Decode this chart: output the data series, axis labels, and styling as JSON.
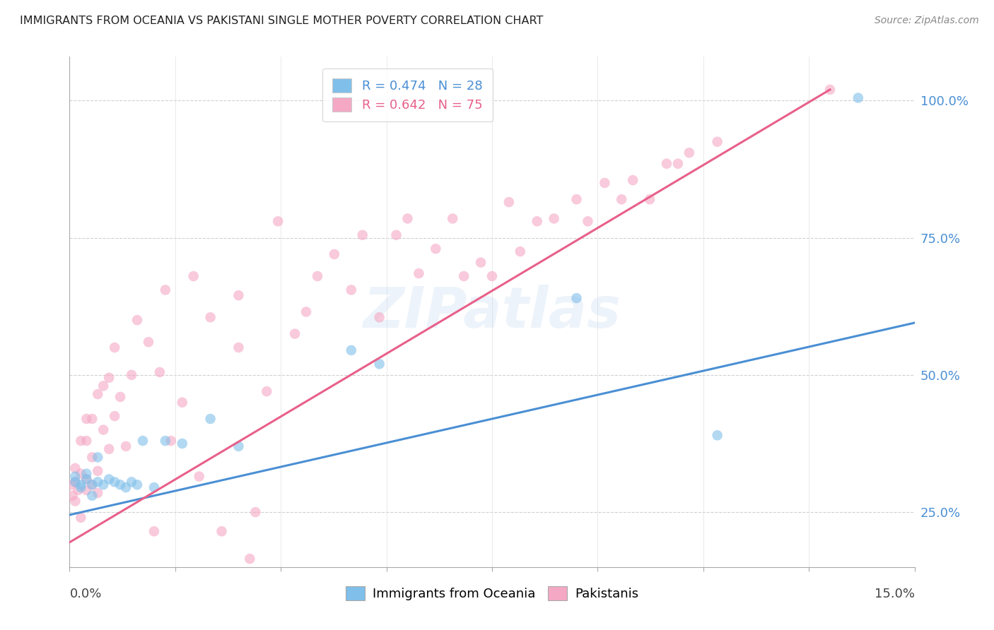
{
  "title": "IMMIGRANTS FROM OCEANIA VS PAKISTANI SINGLE MOTHER POVERTY CORRELATION CHART",
  "source": "Source: ZipAtlas.com",
  "ylabel": "Single Mother Poverty",
  "y_ticks": [
    0.25,
    0.5,
    0.75,
    1.0
  ],
  "y_tick_labels": [
    "25.0%",
    "50.0%",
    "75.0%",
    "100.0%"
  ],
  "x_min": 0.0,
  "x_max": 0.15,
  "y_min": 0.15,
  "y_max": 1.08,
  "watermark": "ZIPatlas",
  "legend_labels": [
    "R = 0.474   N = 28",
    "R = 0.642   N = 75"
  ],
  "blue_color": "#7fbfea",
  "pink_color": "#f4a8c4",
  "blue_line_color": "#4a8fd4",
  "pink_line_color": "#e8608a",
  "blue_line_x": [
    0.0,
    0.15
  ],
  "blue_line_y": [
    0.245,
    0.595
  ],
  "pink_line_x": [
    0.0,
    0.135
  ],
  "pink_line_y": [
    0.195,
    1.02
  ],
  "oceania_x": [
    0.001,
    0.001,
    0.002,
    0.002,
    0.003,
    0.003,
    0.004,
    0.004,
    0.005,
    0.005,
    0.006,
    0.007,
    0.008,
    0.009,
    0.01,
    0.011,
    0.012,
    0.013,
    0.015,
    0.017,
    0.02,
    0.025,
    0.03,
    0.05,
    0.055,
    0.09,
    0.115,
    0.14
  ],
  "oceania_y": [
    0.315,
    0.305,
    0.3,
    0.295,
    0.31,
    0.32,
    0.3,
    0.28,
    0.305,
    0.35,
    0.3,
    0.31,
    0.305,
    0.3,
    0.295,
    0.305,
    0.3,
    0.38,
    0.295,
    0.38,
    0.375,
    0.42,
    0.37,
    0.545,
    0.52,
    0.64,
    0.39,
    1.005
  ],
  "pakistan_x": [
    0.0003,
    0.0005,
    0.001,
    0.001,
    0.001,
    0.0015,
    0.002,
    0.002,
    0.002,
    0.003,
    0.003,
    0.003,
    0.003,
    0.004,
    0.004,
    0.004,
    0.005,
    0.005,
    0.005,
    0.006,
    0.006,
    0.007,
    0.007,
    0.008,
    0.008,
    0.009,
    0.01,
    0.011,
    0.012,
    0.014,
    0.015,
    0.016,
    0.017,
    0.018,
    0.02,
    0.022,
    0.023,
    0.025,
    0.027,
    0.03,
    0.03,
    0.032,
    0.033,
    0.035,
    0.037,
    0.04,
    0.042,
    0.044,
    0.047,
    0.05,
    0.052,
    0.055,
    0.058,
    0.06,
    0.062,
    0.065,
    0.068,
    0.07,
    0.073,
    0.075,
    0.078,
    0.08,
    0.083,
    0.086,
    0.09,
    0.092,
    0.095,
    0.098,
    0.1,
    0.103,
    0.106,
    0.108,
    0.11,
    0.115,
    0.135
  ],
  "pakistan_y": [
    0.3,
    0.28,
    0.33,
    0.27,
    0.305,
    0.29,
    0.38,
    0.32,
    0.24,
    0.31,
    0.29,
    0.38,
    0.42,
    0.3,
    0.35,
    0.42,
    0.325,
    0.285,
    0.465,
    0.4,
    0.48,
    0.365,
    0.495,
    0.425,
    0.55,
    0.46,
    0.37,
    0.5,
    0.6,
    0.56,
    0.215,
    0.505,
    0.655,
    0.38,
    0.45,
    0.68,
    0.315,
    0.605,
    0.215,
    0.645,
    0.55,
    0.165,
    0.25,
    0.47,
    0.78,
    0.575,
    0.615,
    0.68,
    0.72,
    0.655,
    0.755,
    0.605,
    0.755,
    0.785,
    0.685,
    0.73,
    0.785,
    0.68,
    0.705,
    0.68,
    0.815,
    0.725,
    0.78,
    0.785,
    0.82,
    0.78,
    0.85,
    0.82,
    0.855,
    0.82,
    0.885,
    0.885,
    0.905,
    0.925,
    1.02
  ]
}
